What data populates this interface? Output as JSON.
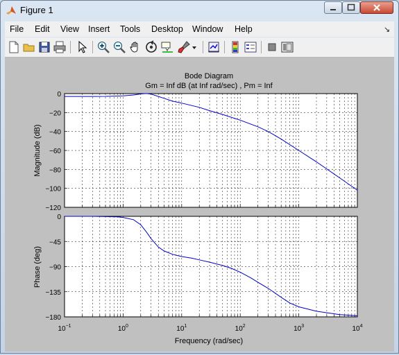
{
  "window": {
    "title": "Figure 1"
  },
  "menu": [
    "File",
    "Edit",
    "View",
    "Insert",
    "Tools",
    "Desktop",
    "Window",
    "Help"
  ],
  "menu_more_icon": "dock-arrow-icon",
  "toolbar_icons": [
    "new-figure-icon",
    "open-file-icon",
    "save-icon",
    "print-icon",
    "edit-plot-arrow-icon",
    "zoom-in-icon",
    "zoom-out-icon",
    "pan-hand-icon",
    "rotate-3d-icon",
    "data-cursor-icon",
    "brush-icon",
    "brush-dropdown-icon",
    "link-plot-icon",
    "colorbar-icon",
    "legend-icon",
    "hide-plot-tools-icon",
    "show-plot-tools-icon"
  ],
  "plot": {
    "title": "Bode Diagram",
    "subtitle": "Gm = Inf dB (at Inf rad/sec) ,  Pm = Inf",
    "xlabel": "Frequency  (rad/sec)",
    "x_tick_labels": [
      {
        "base": "10",
        "exp": "-1"
      },
      {
        "base": "10",
        "exp": "0"
      },
      {
        "base": "10",
        "exp": "1"
      },
      {
        "base": "10",
        "exp": "2"
      },
      {
        "base": "10",
        "exp": "3"
      },
      {
        "base": "10",
        "exp": "4"
      }
    ]
  },
  "chart_data": [
    {
      "type": "line",
      "ylabel": "Magnitude (dB)",
      "xscale": "log",
      "xlim": [
        0.1,
        10000
      ],
      "ylim": [
        -120,
        0
      ],
      "yticks": [
        0,
        -20,
        -40,
        -60,
        -80,
        -100,
        -120
      ],
      "grid": true,
      "color": "#0000cc",
      "x": [
        0.1,
        0.3,
        0.5,
        1,
        1.5,
        2,
        2.5,
        3,
        4,
        5,
        7,
        10,
        20,
        30,
        50,
        100,
        200,
        300,
        500,
        1000,
        2000,
        5000,
        10000
      ],
      "y": [
        -3,
        -3,
        -2.9,
        -2.4,
        -1.5,
        -0.4,
        0.1,
        -0.5,
        -3,
        -5,
        -8,
        -10,
        -14.5,
        -18,
        -22,
        -28,
        -35,
        -40,
        -48,
        -60,
        -72,
        -89,
        -102
      ]
    },
    {
      "type": "line",
      "ylabel": "Phase (deg)",
      "xscale": "log",
      "xlim": [
        0.1,
        10000
      ],
      "ylim": [
        -180,
        0
      ],
      "yticks": [
        0,
        -45,
        -90,
        -135,
        -180
      ],
      "grid": true,
      "color": "#0000cc",
      "x": [
        0.1,
        0.3,
        0.5,
        0.8,
        1,
        1.5,
        2,
        2.5,
        3,
        4,
        5,
        7,
        10,
        15,
        20,
        30,
        50,
        70,
        100,
        150,
        200,
        300,
        500,
        700,
        1000,
        2000,
        5000,
        10000
      ],
      "y": [
        0,
        0,
        -0.5,
        -1,
        -2,
        -6,
        -15,
        -28,
        -40,
        -55,
        -62,
        -68,
        -72,
        -75,
        -78,
        -82,
        -88,
        -93,
        -100,
        -110,
        -118,
        -129,
        -145,
        -155,
        -162,
        -170,
        -176,
        -178
      ]
    }
  ]
}
